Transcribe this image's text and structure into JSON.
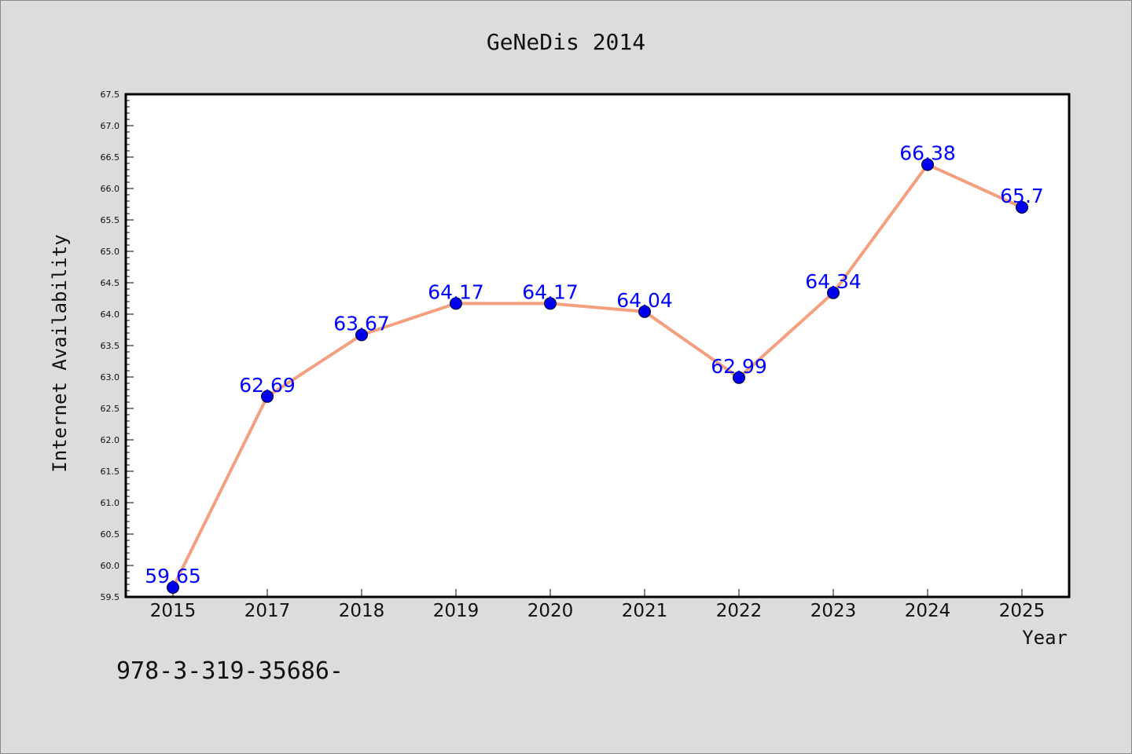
{
  "chart_data": {
    "type": "line",
    "title": "GeNeDis 2014",
    "xlabel": "Year",
    "ylabel": "Internet Availability",
    "categories": [
      "2015",
      "2017",
      "2018",
      "2019",
      "2020",
      "2021",
      "2022",
      "2023",
      "2024",
      "2025"
    ],
    "series": [
      {
        "values": [
          59.65,
          62.69,
          63.67,
          64.17,
          64.17,
          64.04,
          62.99,
          64.34,
          66.38,
          65.7
        ],
        "labels": [
          "59.65",
          "62.69",
          "63.67",
          "64.17",
          "64.17",
          "64.04",
          "62.99",
          "64.34",
          "66.38",
          "65.7"
        ]
      }
    ],
    "ylim": [
      59.5,
      67.5
    ],
    "yticks": [
      "59.5",
      "60.0",
      "60.5",
      "61.0",
      "61.5",
      "62.0",
      "62.5",
      "63.0",
      "63.5",
      "64.0",
      "64.5",
      "65.0",
      "65.5",
      "66.0",
      "66.5",
      "67.0",
      "67.5"
    ],
    "grid": false,
    "line_color": "#f4a07f",
    "marker_color": "#0000ee",
    "label_color": "#0000ff",
    "background_color": "#dcdcdc",
    "plot_background": "#ffffff"
  },
  "footer_text": "978-3-319-35686-"
}
